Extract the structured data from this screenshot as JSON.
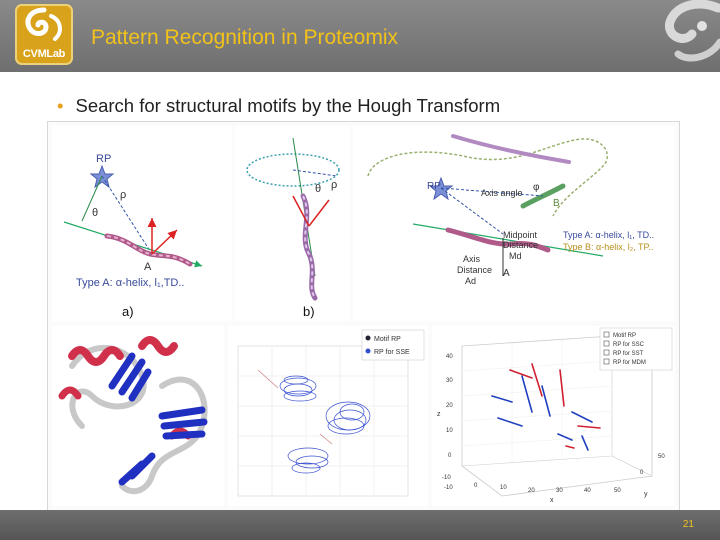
{
  "header": {
    "logo_text": "CVMLab",
    "title": "Pattern Recognition in Proteomix"
  },
  "bullet": "Search for structural motifs by the Hough Transform",
  "figure": {
    "panel_a": {
      "rp": "RP",
      "rho": "ρ",
      "theta": "θ",
      "point_a": "A",
      "type_line": "Type A: α-helix, l₁,TD..",
      "caption": "a)"
    },
    "panel_b": {
      "rho": "ρ",
      "theta": "θ",
      "caption": "b)"
    },
    "panel_c": {
      "rp": "RP",
      "phi": "φ",
      "axis_angle": "Axis angle",
      "point_b": "B",
      "midpoint": "Midpoint",
      "distance": "Distance",
      "md": "Md",
      "axis": "Axis",
      "distance2": "Distance",
      "ad": "Ad",
      "point_a": "A",
      "type_a": "Type A: α-helix, l₁, TD..",
      "type_b": "Type B: α-helix, l₂, TP.."
    },
    "scatter_legend": [
      "Motif RP",
      "RP for SSE"
    ],
    "plot3d": {
      "legend": [
        "Motif RP",
        "RP for SSC",
        "RP for SST",
        "RP for MDM"
      ],
      "z_ticks": [
        "40",
        "30",
        "20",
        "10",
        "0",
        "-10"
      ],
      "x_ticks": [
        "-10",
        "0",
        "10",
        "20",
        "30",
        "40",
        "50"
      ],
      "y_ticks": [
        "50",
        "0"
      ],
      "z_label": "z",
      "x_label": "x",
      "y_label": "y"
    }
  },
  "footer": {
    "page_number": "21"
  }
}
